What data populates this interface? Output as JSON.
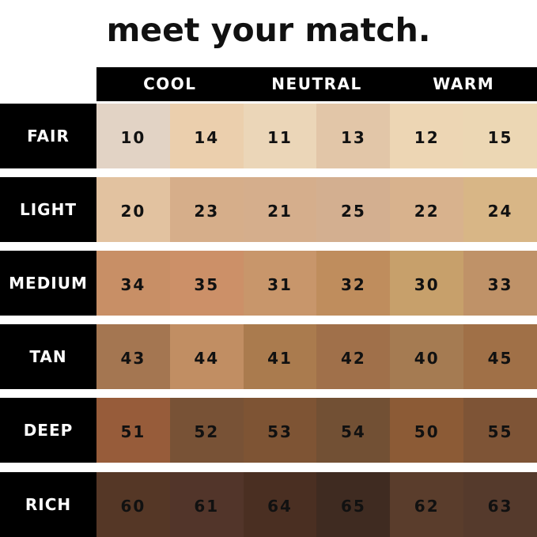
{
  "title": "meet your match.",
  "columns": [
    "COOL",
    "NEUTRAL",
    "WARM"
  ],
  "rows": [
    {
      "label": "FAIR",
      "shades": [
        "10",
        "14",
        "11",
        "13",
        "12",
        "15"
      ],
      "colors": [
        "#e2d3c5",
        "#ebcfad",
        "#ebd6b8",
        "#e2c6a8",
        "#edd6b4",
        "#ecd7b4"
      ]
    },
    {
      "label": "LIGHT",
      "shades": [
        "20",
        "23",
        "21",
        "25",
        "22",
        "24"
      ],
      "colors": [
        "#e2c2a0",
        "#d6ae8a",
        "#d5ae8c",
        "#d3af90",
        "#d8b28d",
        "#d8b686"
      ]
    },
    {
      "label": "MEDIUM",
      "shades": [
        "34",
        "35",
        "31",
        "32",
        "30",
        "33"
      ],
      "colors": [
        "#c88f66",
        "#cc9068",
        "#c8966b",
        "#bf8d5d",
        "#c7a06b",
        "#bf9268"
      ]
    },
    {
      "label": "TAN",
      "shades": [
        "43",
        "44",
        "41",
        "42",
        "40",
        "45"
      ],
      "colors": [
        "#a47651",
        "#c18e63",
        "#aa7b4e",
        "#a0704a",
        "#a57b52",
        "#a07047"
      ]
    },
    {
      "label": "DEEP",
      "shades": [
        "51",
        "52",
        "53",
        "54",
        "50",
        "55"
      ],
      "colors": [
        "#975c3a",
        "#785236",
        "#7e5434",
        "#725034",
        "#8c5b36",
        "#7e5436"
      ]
    },
    {
      "label": "RICH",
      "shades": [
        "60",
        "61",
        "64",
        "65",
        "62",
        "63"
      ],
      "colors": [
        "#553726",
        "#52352a",
        "#4a2f22",
        "#3f2b21",
        "#5a3d2c",
        "#553a2c"
      ]
    }
  ]
}
